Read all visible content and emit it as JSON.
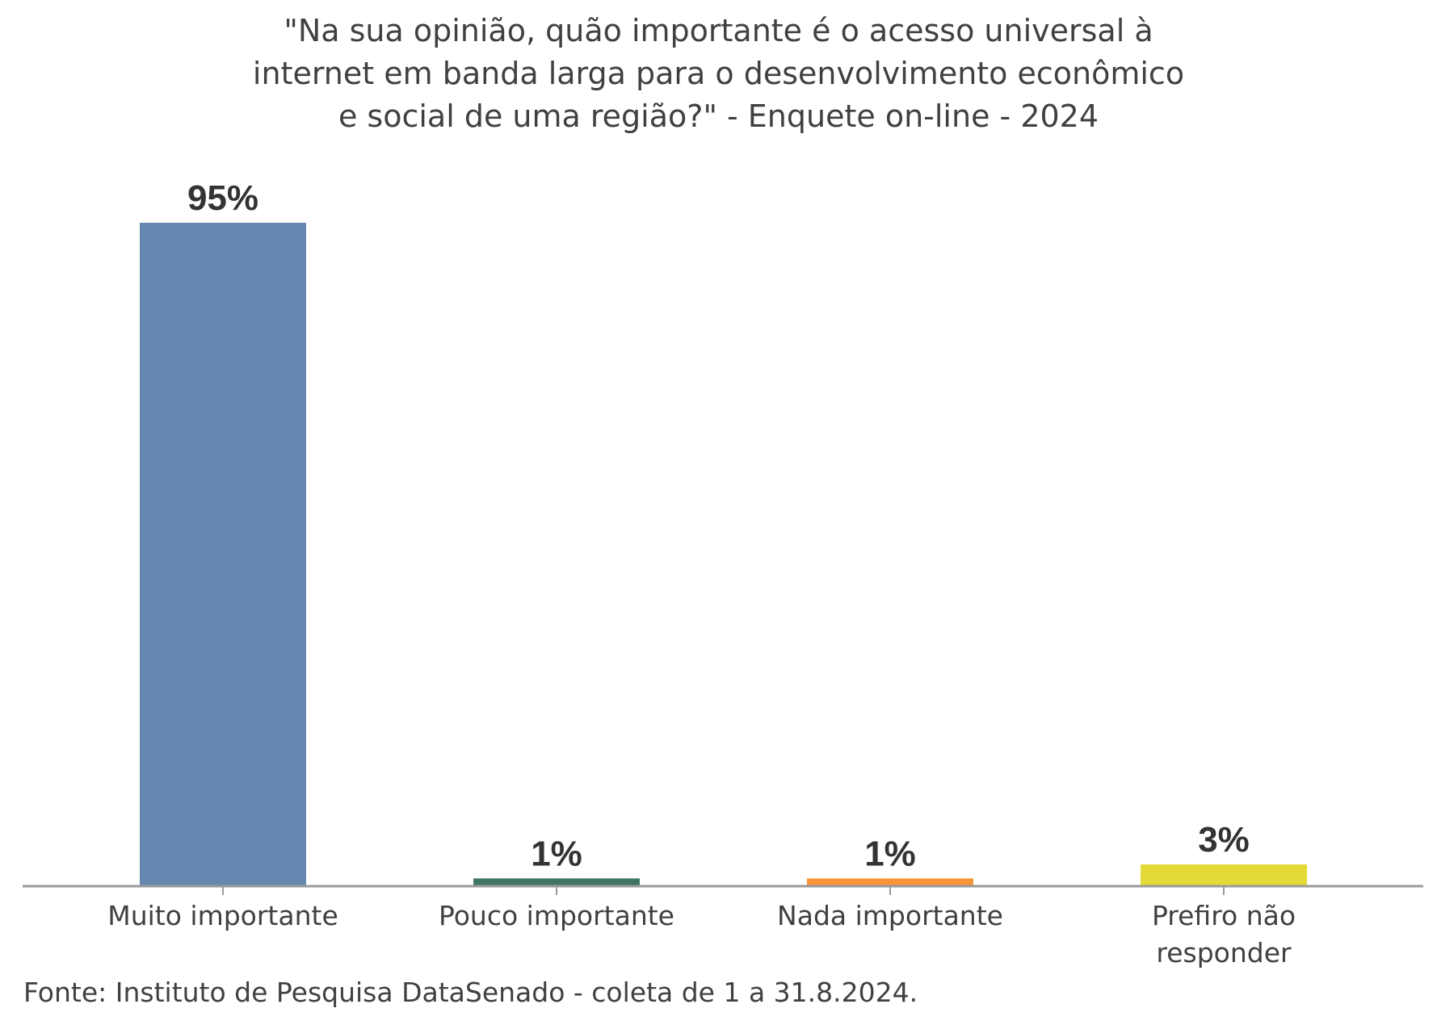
{
  "chart_data": {
    "type": "bar",
    "title_lines": [
      "\"Na sua opinião, quão importante é o acesso universal à",
      "internet em banda larga para o desenvolvimento econômico",
      "e social de uma região?\" - Enquete on-line - 2024"
    ],
    "categories": [
      [
        "Muito importante"
      ],
      [
        "Pouco importante"
      ],
      [
        "Nada importante"
      ],
      [
        "Prefiro não",
        "responder"
      ]
    ],
    "values": [
      95,
      1,
      1,
      3
    ],
    "data_labels": [
      "95%",
      "1%",
      "1%",
      "3%"
    ],
    "colors": [
      "#6688B0",
      "#3F7563",
      "#F79539",
      "#E5D935"
    ],
    "ylim": [
      0,
      95
    ],
    "grid": false,
    "legend": "none",
    "axis_color": "#9A9A9A",
    "source": "Fonte: Instituto de Pesquisa DataSenado - coleta de 1 a 31.8.2024."
  }
}
